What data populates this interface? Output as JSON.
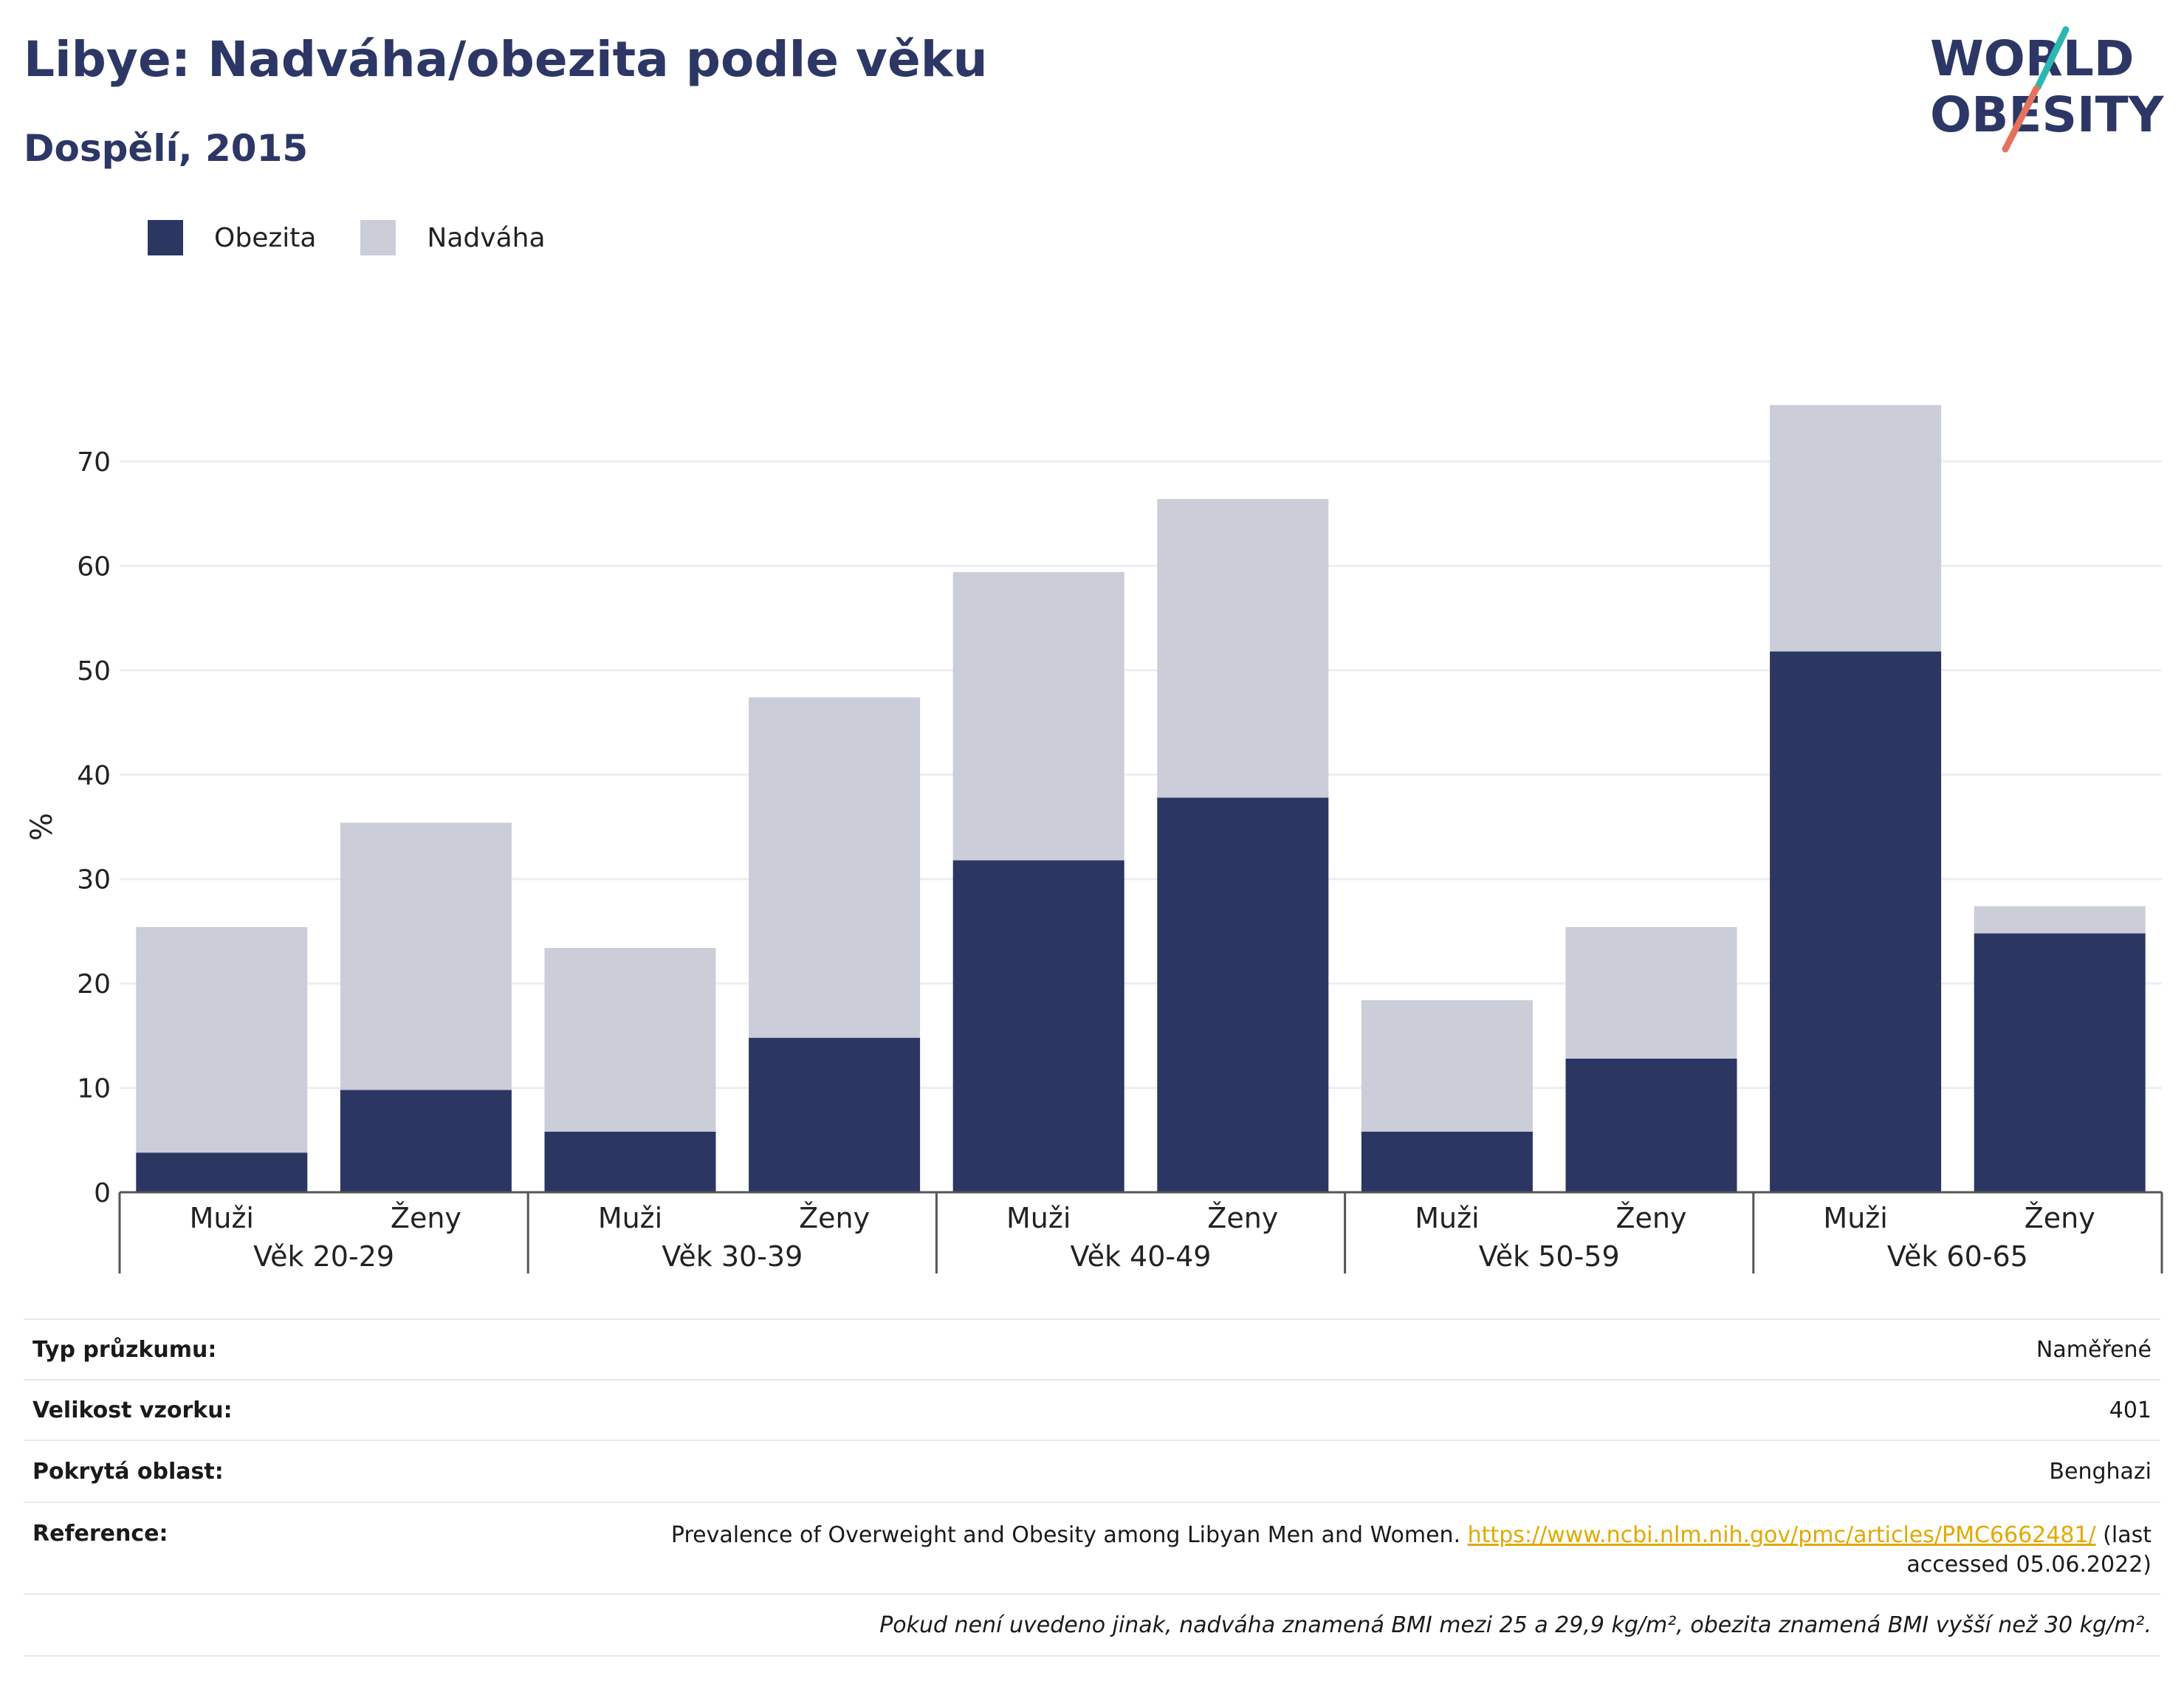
{
  "header": {
    "title": "Libye: Nadváha/obezita podle věku",
    "subtitle": "Dospělí, 2015"
  },
  "logo": {
    "line1": "WORLD",
    "line2": "OBESITY"
  },
  "colors": {
    "obesity": "#2b3663",
    "overweight": "#cbcdd8",
    "accent_teal": "#2bb8b0",
    "accent_coral": "#e5725d",
    "link": "#e2a800"
  },
  "legend": [
    {
      "label": "Obezita",
      "color": "#2b3663"
    },
    {
      "label": "Nadváha",
      "color": "#cbcdd8"
    }
  ],
  "chart_data": {
    "type": "bar",
    "stacked": true,
    "ylabel": "%",
    "ylim": [
      0,
      78
    ],
    "yticks": [
      0,
      10,
      20,
      30,
      40,
      50,
      60,
      70
    ],
    "grid": true,
    "groups": [
      "Věk 20-29",
      "Věk 30-39",
      "Věk 40-49",
      "Věk 50-59",
      "Věk 60-65"
    ],
    "categories": [
      "Muži",
      "Ženy",
      "Muži",
      "Ženy",
      "Muži",
      "Ženy",
      "Muži",
      "Ženy",
      "Muži",
      "Ženy"
    ],
    "series": [
      {
        "name": "Obezita",
        "values": [
          3.8,
          9.8,
          5.8,
          14.8,
          31.8,
          37.8,
          5.8,
          12.8,
          51.8,
          24.8
        ]
      },
      {
        "name": "Nadváha",
        "values": [
          21.6,
          25.6,
          17.6,
          32.6,
          27.6,
          28.6,
          12.6,
          12.6,
          23.6,
          2.6
        ]
      }
    ]
  },
  "info": {
    "rows": [
      {
        "key": "Typ průzkumu:",
        "value": "Naměřené"
      },
      {
        "key": "Velikost vzorku:",
        "value": "401"
      },
      {
        "key": "Pokrytá oblast:",
        "value": "Benghazi"
      }
    ],
    "reference": {
      "key": "Reference:",
      "text": "Prevalence of Overweight and Obesity among Libyan Men and Women.",
      "link": "https://www.ncbi.nlm.nih.gov/pmc/articles/PMC6662481/",
      "suffix1": "(last",
      "suffix2": "accessed 05.06.2022)"
    },
    "note": "Pokud není uvedeno jinak, nadváha znamená BMI mezi 25 a 29,9 kg/m², obezita znamená BMI vyšší než 30 kg/m²."
  }
}
